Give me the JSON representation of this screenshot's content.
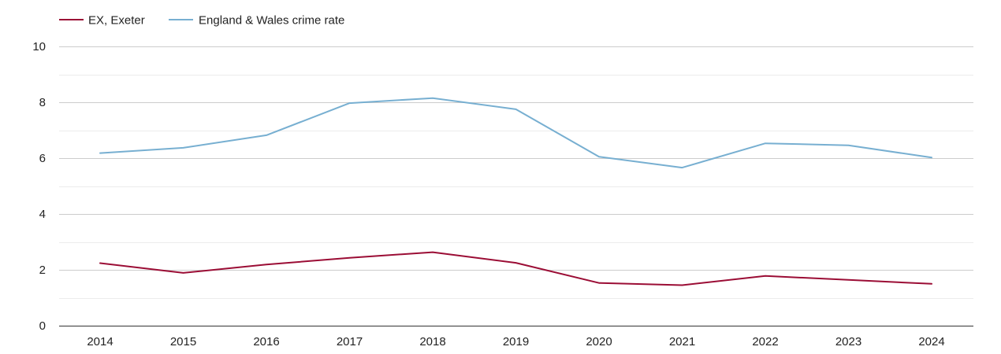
{
  "chart_data": {
    "type": "line",
    "title": "",
    "xlabel": "",
    "ylabel": "",
    "categories": [
      "2014",
      "2015",
      "2016",
      "2017",
      "2018",
      "2019",
      "2020",
      "2021",
      "2022",
      "2023",
      "2024"
    ],
    "series": [
      {
        "name": "EX, Exeter",
        "color": "#9b0d35",
        "values": [
          2.24,
          1.89,
          2.19,
          2.43,
          2.63,
          2.25,
          1.53,
          1.45,
          1.78,
          1.64,
          1.5
        ]
      },
      {
        "name": "England & Wales crime rate",
        "color": "#77afd1",
        "values": [
          6.18,
          6.37,
          6.82,
          7.97,
          8.15,
          7.75,
          6.05,
          5.66,
          6.53,
          6.46,
          6.02
        ]
      }
    ],
    "ylim": [
      0,
      10
    ],
    "yticks": [
      0,
      2,
      4,
      6,
      8,
      10
    ],
    "grid": true,
    "legend": "top-left"
  }
}
